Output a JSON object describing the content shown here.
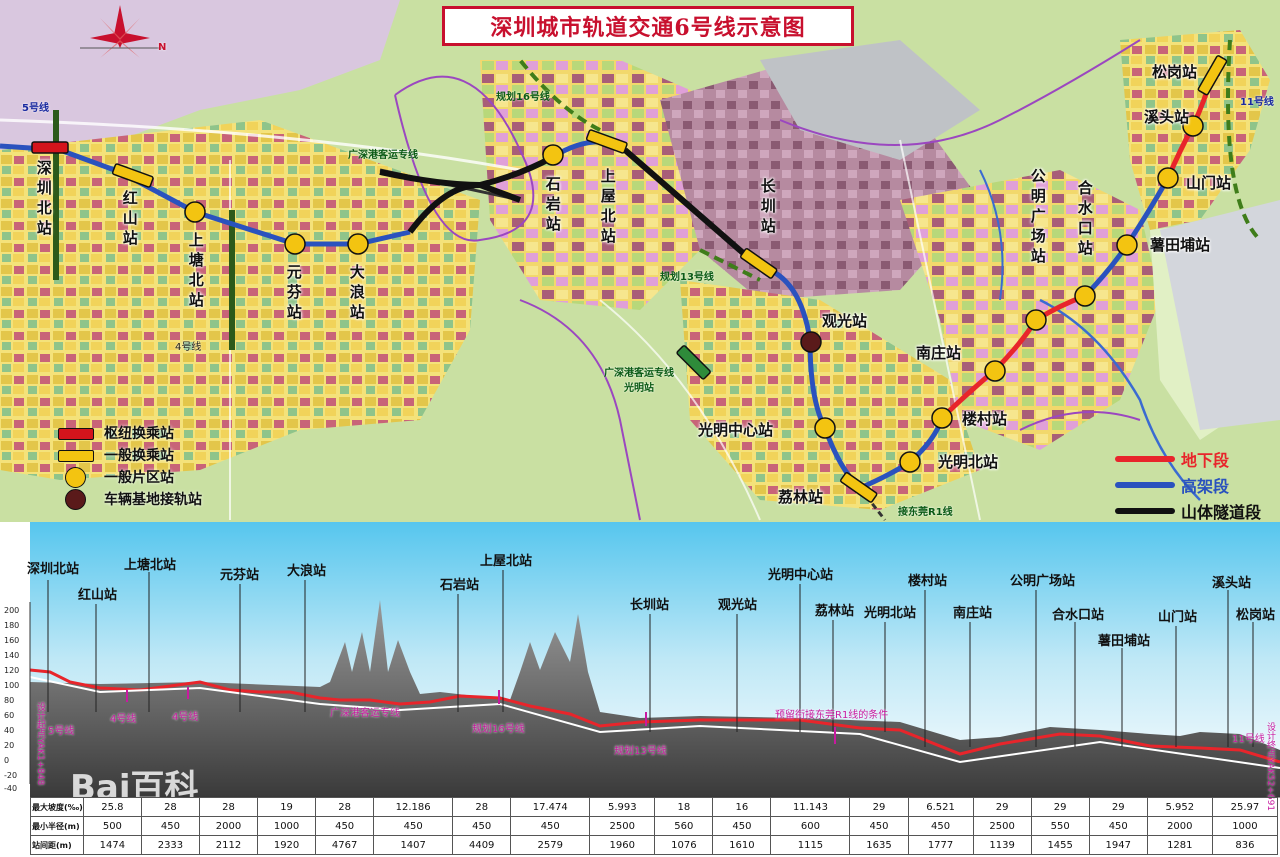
{
  "title": "深圳城市轨道交通6号线示意图",
  "compass_label": "N",
  "lines": {
    "l5": "5号线",
    "l4": "4号线",
    "l16": "规划16号线",
    "l13": "规划13号线",
    "l11": "11号线",
    "gs_rail": "广深港客运专线",
    "gs_station": "广深港客运专线\n光明站",
    "r1": "接东莞R1线"
  },
  "stations": [
    {
      "name": "深圳北站",
      "type": "hub"
    },
    {
      "name": "红山站",
      "type": "transfer"
    },
    {
      "name": "上塘北站",
      "type": "regular"
    },
    {
      "name": "元芬站",
      "type": "regular"
    },
    {
      "name": "大浪站",
      "type": "regular"
    },
    {
      "name": "石岩站",
      "type": "regular"
    },
    {
      "name": "上屋北站",
      "type": "transfer"
    },
    {
      "name": "长圳站",
      "type": "transfer"
    },
    {
      "name": "观光站",
      "type": "depot"
    },
    {
      "name": "光明中心站",
      "type": "regular"
    },
    {
      "name": "荔林站",
      "type": "transfer"
    },
    {
      "name": "光明北站",
      "type": "regular"
    },
    {
      "name": "楼村站",
      "type": "regular"
    },
    {
      "name": "南庄站",
      "type": "regular"
    },
    {
      "name": "公明广场站",
      "type": "regular"
    },
    {
      "name": "合水口站",
      "type": "regular"
    },
    {
      "name": "薯田埔站",
      "type": "regular"
    },
    {
      "name": "山门站",
      "type": "regular"
    },
    {
      "name": "溪头站",
      "type": "regular"
    },
    {
      "name": "松岗站",
      "type": "transfer"
    }
  ],
  "legend": {
    "hub": "枢纽换乘站",
    "transfer": "一般换乘站",
    "regular": "一般片区站",
    "depot": "车辆基地接轨站",
    "underground": "地下段",
    "elevated": "高架段",
    "tunnel": "山体隧道段"
  },
  "colors": {
    "underground": "#e8252b",
    "elevated": "#2a52be",
    "tunnel": "#111111",
    "regular_station": "#f3c411",
    "depot_station": "#5a1a1a",
    "hub_station": "#d4141c",
    "title_red": "#c8102e"
  },
  "profile": {
    "y_ticks": [
      "200",
      "180",
      "160",
      "140",
      "120",
      "100",
      "80",
      "60",
      "40",
      "20",
      "0",
      "-20",
      "-40"
    ],
    "stations": [
      "深圳北站",
      "红山站",
      "上塘北站",
      "元芬站",
      "大浪站",
      "石岩站",
      "上屋北站",
      "长圳站",
      "观光站",
      "光明中心站",
      "荔林站",
      "光明北站",
      "楼村站",
      "南庄站",
      "公明广场站",
      "合水口站",
      "薯田埔站",
      "山门站",
      "溪头站",
      "松岗站"
    ],
    "annotations": {
      "start": "设计起点YAK1+848",
      "end": "设计终点YAK52+691",
      "l5": "5号线",
      "l4a": "4号线",
      "l4b": "4号线",
      "gs": "广深港客运专线",
      "l16": "规划16号线",
      "l13": "规划13号线",
      "r1": "预留衔接东莞R1线的条件",
      "l11": "11号线"
    },
    "table": {
      "row_labels": [
        "最大坡度(‰)",
        "最小半径(m)",
        "站间距(m)"
      ],
      "max_grade": [
        "25.8",
        "28",
        "28",
        "19",
        "28",
        "12.186",
        "28",
        "17.474",
        "5.993",
        "18",
        "16",
        "11.143",
        "29",
        "6.521",
        "29",
        "29",
        "29",
        "5.952",
        "25.97"
      ],
      "min_radius": [
        "500",
        "450",
        "2000",
        "1000",
        "450",
        "450",
        "450",
        "450",
        "2500",
        "560",
        "450",
        "600",
        "450",
        "450",
        "2500",
        "550",
        "450",
        "2000",
        "1000"
      ],
      "distance": [
        "1474",
        "2333",
        "2112",
        "1920",
        "4767",
        "1407",
        "4409",
        "2579",
        "1960",
        "1076",
        "1610",
        "1115",
        "1635",
        "1777",
        "1139",
        "1455",
        "1947",
        "1281",
        "836"
      ]
    }
  },
  "watermark": "Bai百科"
}
